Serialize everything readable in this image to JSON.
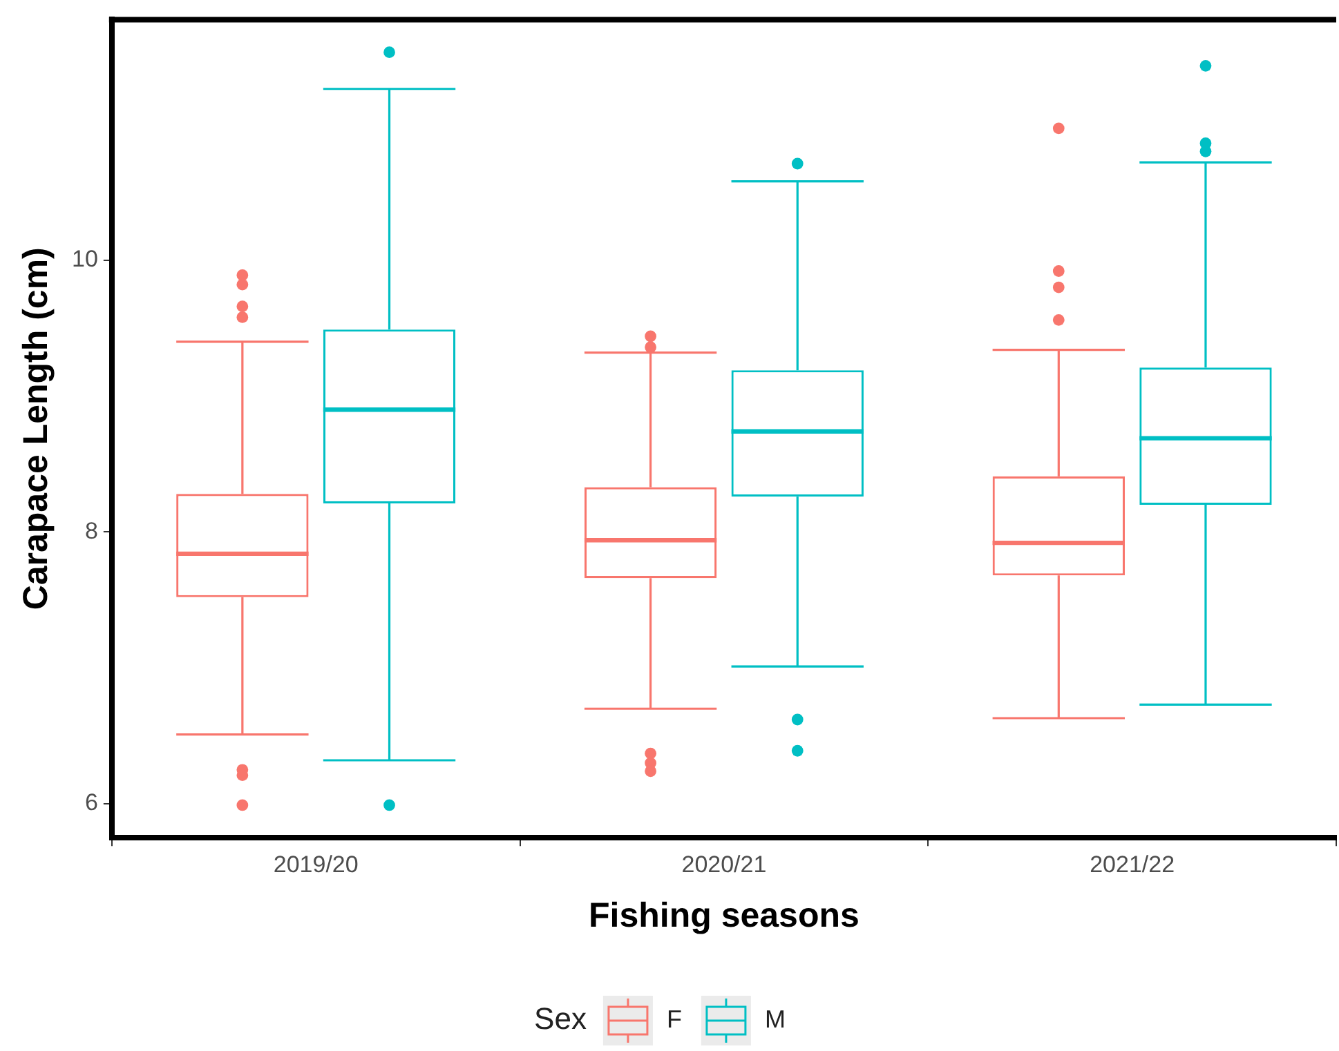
{
  "chart_data": {
    "type": "box",
    "xlabel": "Fishing seasons",
    "ylabel": "Carapace Length (cm)",
    "legend": "bottom",
    "legend_title": "Sex",
    "categories": [
      "2019/20",
      "2020/21",
      "2021/22"
    ],
    "ylim": [
      5.75,
      11.77
    ],
    "yticks": [
      6,
      8,
      10
    ],
    "series": [
      {
        "name": "F",
        "color": "#f8766d",
        "boxes": [
          {
            "low": 6.51,
            "q1": 7.52,
            "median": 7.84,
            "q3": 8.28,
            "high": 9.4,
            "outliers": [
              9.89,
              9.82,
              9.66,
              9.58,
              6.25,
              6.21,
              5.99
            ]
          },
          {
            "low": 6.7,
            "q1": 7.66,
            "median": 7.94,
            "q3": 8.33,
            "high": 9.32,
            "outliers": [
              9.44,
              9.36,
              6.37,
              6.3,
              6.24
            ]
          },
          {
            "low": 6.63,
            "q1": 7.68,
            "median": 7.92,
            "q3": 8.41,
            "high": 9.34,
            "outliers": [
              10.97,
              9.92,
              9.8,
              9.56
            ]
          }
        ]
      },
      {
        "name": "M",
        "color": "#00bfc4",
        "boxes": [
          {
            "low": 6.32,
            "q1": 8.21,
            "median": 8.9,
            "q3": 9.49,
            "high": 11.26,
            "outliers": [
              11.53,
              5.99
            ]
          },
          {
            "low": 7.01,
            "q1": 8.26,
            "median": 8.74,
            "q3": 9.19,
            "high": 10.58,
            "outliers": [
              10.71,
              6.62,
              6.39
            ]
          },
          {
            "low": 6.73,
            "q1": 8.2,
            "median": 8.69,
            "q3": 9.21,
            "high": 10.72,
            "outliers": [
              11.43,
              10.86,
              10.8
            ]
          }
        ]
      }
    ]
  }
}
